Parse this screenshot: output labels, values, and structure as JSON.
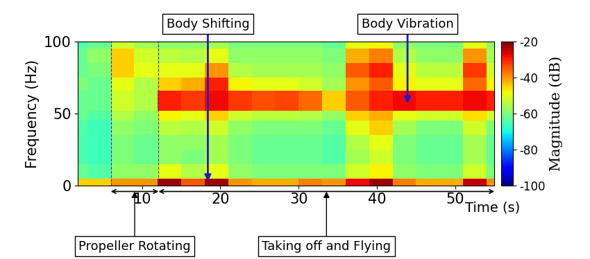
{
  "chart_data": {
    "type": "heatmap",
    "x_label": "Time (s)",
    "y_label": "Frequency (Hz)",
    "colorbar_label": "Magnitude (dB)",
    "xlim": [
      1.8,
      55
    ],
    "xticks": [
      10,
      20,
      30,
      40,
      50
    ],
    "ylim": [
      0,
      100
    ],
    "yticks": [
      0,
      50,
      100
    ],
    "x_edges": [
      0,
      3,
      6,
      9,
      12,
      15,
      18,
      21,
      24,
      27,
      30,
      33,
      36,
      39,
      42,
      45,
      48,
      51,
      54,
      57
    ],
    "y_edges": [
      0,
      5,
      15,
      25,
      35,
      45,
      52,
      66,
      75,
      85,
      95,
      100
    ],
    "cells": [
      [
        -45,
        -45,
        -40,
        -40,
        -22,
        -35,
        -22,
        -40,
        -42,
        -42,
        -38,
        -40,
        -28,
        -22,
        -38,
        -42,
        -42,
        -25,
        -40
      ],
      [
        -62,
        -64,
        -58,
        -58,
        -50,
        -55,
        -50,
        -58,
        -60,
        -60,
        -60,
        -60,
        -52,
        -48,
        -58,
        -60,
        -60,
        -52,
        -60
      ],
      [
        -65,
        -66,
        -60,
        -62,
        -58,
        -60,
        -56,
        -60,
        -62,
        -62,
        -62,
        -64,
        -56,
        -52,
        -60,
        -62,
        -62,
        -56,
        -62
      ],
      [
        -65,
        -66,
        -60,
        -62,
        -58,
        -58,
        -56,
        -60,
        -62,
        -62,
        -62,
        -64,
        -55,
        -50,
        -60,
        -62,
        -62,
        -56,
        -62
      ],
      [
        -64,
        -66,
        -58,
        -60,
        -54,
        -55,
        -52,
        -58,
        -60,
        -60,
        -60,
        -62,
        -50,
        -45,
        -56,
        -60,
        -60,
        -52,
        -60
      ],
      [
        -62,
        -64,
        -55,
        -58,
        -48,
        -50,
        -45,
        -52,
        -54,
        -54,
        -55,
        -58,
        -45,
        -42,
        -50,
        -52,
        -52,
        -46,
        -52
      ],
      [
        -62,
        -62,
        -52,
        -55,
        -30,
        -32,
        -28,
        -32,
        -34,
        -33,
        -36,
        -45,
        -35,
        -30,
        -28,
        -30,
        -30,
        -28,
        -30
      ],
      [
        -60,
        -62,
        -50,
        -55,
        -45,
        -42,
        -30,
        -48,
        -50,
        -50,
        -52,
        -56,
        -40,
        -35,
        -48,
        -50,
        -50,
        -36,
        -48
      ],
      [
        -62,
        -60,
        -45,
        -50,
        -50,
        -50,
        -40,
        -55,
        -56,
        -56,
        -56,
        -58,
        -35,
        -30,
        -50,
        -54,
        -54,
        -32,
        -52
      ],
      [
        -62,
        -58,
        -45,
        -52,
        -54,
        -55,
        -50,
        -58,
        -58,
        -58,
        -58,
        -60,
        -42,
        -38,
        -55,
        -58,
        -58,
        -40,
        -56
      ],
      [
        -64,
        -62,
        -52,
        -56,
        -58,
        -58,
        -56,
        -60,
        -60,
        -60,
        -60,
        -62,
        -50,
        -48,
        -58,
        -60,
        -60,
        -50,
        -58
      ]
    ],
    "colorbar_lim": [
      -100,
      -20
    ],
    "colorbar_ticks": [
      -20,
      -40,
      -60,
      -80,
      -100
    ],
    "annotations": [
      {
        "text": "Body Shifting",
        "x": 18.4,
        "y": 3
      },
      {
        "text": "Body Vibration",
        "x": 43.9,
        "y": 57
      }
    ],
    "phases": [
      {
        "text": "Propeller Rotating",
        "start": 6,
        "end": 12.1
      },
      {
        "text": "Taking off and Flying",
        "start": 12.1,
        "end": 55
      }
    ]
  }
}
